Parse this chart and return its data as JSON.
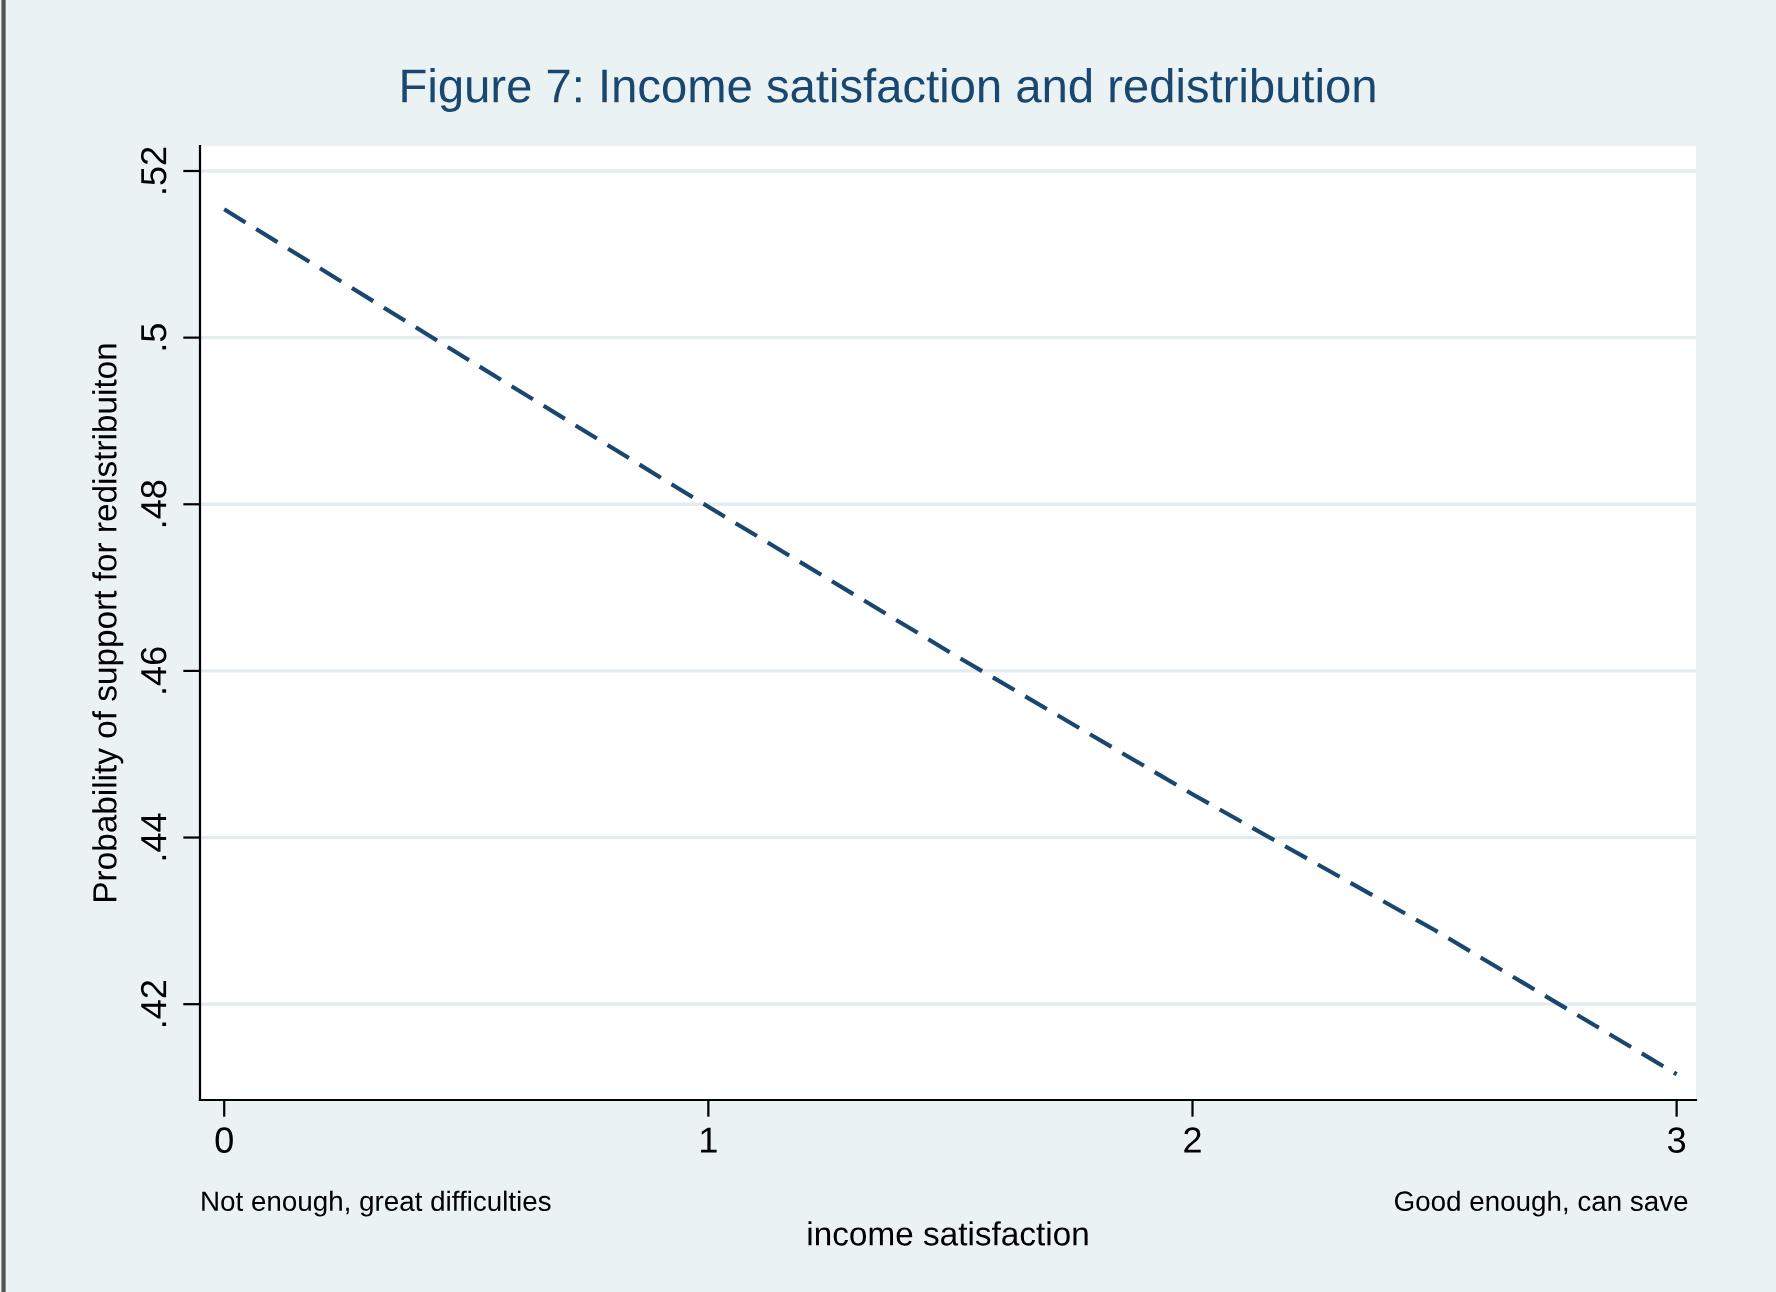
{
  "chart_data": {
    "type": "line",
    "title": "Figure 7: Income satisfaction and redistribution",
    "xlabel": "income satisfaction",
    "ylabel": "Probability of support for redistribuiton",
    "x": [
      0,
      0.5,
      1,
      1.5,
      2,
      2.5,
      3
    ],
    "series": [
      {
        "color": "#1a476f",
        "values": [
          0.5154,
          0.4975,
          0.4797,
          0.4622,
          0.4452,
          0.4289,
          0.4116
        ]
      }
    ],
    "xlim": [
      -0.05,
      3.04
    ],
    "ylim": [
      0.4085,
      0.523
    ],
    "xticks": [
      0,
      1,
      2,
      3
    ],
    "yticks": [
      {
        "value": 0.42,
        "label": ".42"
      },
      {
        "value": 0.44,
        "label": ".44"
      },
      {
        "value": 0.46,
        "label": ".46"
      },
      {
        "value": 0.48,
        "label": ".48"
      },
      {
        "value": 0.5,
        "label": ".5"
      },
      {
        "value": 0.52,
        "label": ".52"
      }
    ],
    "grid": "y",
    "line_style": "dashed",
    "marker": "none",
    "annotations": [
      "Not enough, great difficulties",
      "Good enough, can save"
    ]
  }
}
